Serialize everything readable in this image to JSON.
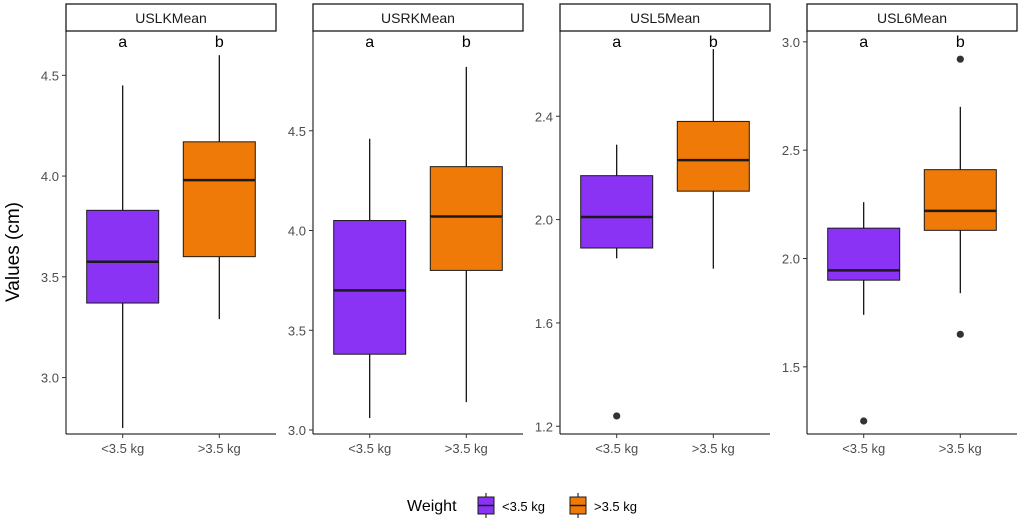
{
  "chart_data": [
    {
      "type": "box",
      "panel": "USLKMean",
      "categories": [
        "<3.5 kg",
        ">3.5 kg"
      ],
      "ylim": [
        2.72,
        4.72
      ],
      "yticks": [
        3.0,
        3.5,
        4.0,
        4.5
      ],
      "tick_labels": [
        "3.0",
        "3.5",
        "4.0",
        "4.5"
      ],
      "group_letters": [
        "a",
        "b"
      ],
      "boxes": [
        {
          "whisker_low": 2.75,
          "q1": 3.37,
          "median": 3.575,
          "q3": 3.83,
          "whisker_high": 4.45,
          "outliers": []
        },
        {
          "whisker_low": 3.29,
          "q1": 3.6,
          "median": 3.98,
          "q3": 4.17,
          "whisker_high": 4.6,
          "outliers": []
        }
      ]
    },
    {
      "type": "box",
      "panel": "USRKMean",
      "categories": [
        "<3.5 kg",
        ">3.5 kg"
      ],
      "ylim": [
        2.98,
        5.0
      ],
      "yticks": [
        3.0,
        3.5,
        4.0,
        4.5
      ],
      "tick_labels": [
        "3.0",
        "3.5",
        "4.0",
        "4.5"
      ],
      "group_letters": [
        "a",
        "b"
      ],
      "boxes": [
        {
          "whisker_low": 3.06,
          "q1": 3.38,
          "median": 3.7,
          "q3": 4.05,
          "whisker_high": 4.46,
          "outliers": []
        },
        {
          "whisker_low": 3.14,
          "q1": 3.8,
          "median": 4.07,
          "q3": 4.32,
          "whisker_high": 4.82,
          "outliers": []
        }
      ]
    },
    {
      "type": "box",
      "panel": "USL5Mean",
      "categories": [
        "<3.5 kg",
        ">3.5 kg"
      ],
      "ylim": [
        1.17,
        2.73
      ],
      "yticks": [
        1.2,
        1.6,
        2.0,
        2.4
      ],
      "tick_labels": [
        "1.2",
        "1.6",
        "2.0",
        "2.4"
      ],
      "group_letters": [
        "a",
        "b"
      ],
      "boxes": [
        {
          "whisker_low": 1.85,
          "q1": 1.89,
          "median": 2.01,
          "q3": 2.17,
          "whisker_high": 2.29,
          "outliers": [
            1.24
          ]
        },
        {
          "whisker_low": 1.81,
          "q1": 2.11,
          "median": 2.23,
          "q3": 2.38,
          "whisker_high": 2.66,
          "outliers": []
        }
      ]
    },
    {
      "type": "box",
      "panel": "USL6Mean",
      "categories": [
        "<3.5 kg",
        ">3.5 kg"
      ],
      "ylim": [
        1.19,
        3.05
      ],
      "yticks": [
        1.5,
        2.0,
        2.5,
        3.0
      ],
      "tick_labels": [
        "1.5",
        "2.0",
        "2.5",
        "3.0"
      ],
      "group_letters": [
        "a",
        "b"
      ],
      "boxes": [
        {
          "whisker_low": 1.74,
          "q1": 1.9,
          "median": 1.945,
          "q3": 2.14,
          "whisker_high": 2.26,
          "outliers": [
            1.25
          ]
        },
        {
          "whisker_low": 1.84,
          "q1": 2.13,
          "median": 2.22,
          "q3": 2.41,
          "whisker_high": 2.7,
          "outliers": [
            2.92,
            1.65
          ]
        }
      ]
    }
  ],
  "ylabel": "Values (cm)",
  "legend": {
    "title": "Weight",
    "placement": "bottom",
    "entries": [
      {
        "label": "<3.5 kg",
        "color": "#8a33f5"
      },
      {
        "label": ">3.5 kg",
        "color": "#f07a08"
      }
    ]
  }
}
